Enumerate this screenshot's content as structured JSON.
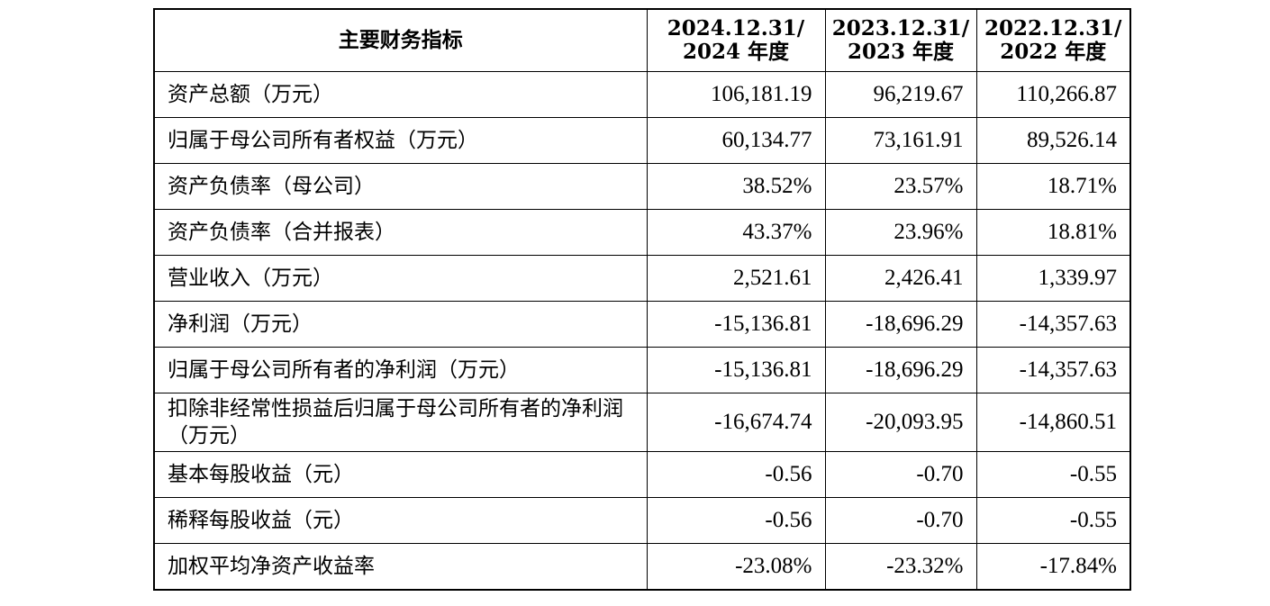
{
  "table": {
    "header": {
      "indicator": "主要财务指标",
      "periods": [
        {
          "line1": "2024.12.31/",
          "line2": "2024 年度"
        },
        {
          "line1": "2023.12.31/",
          "line2": "2023 年度"
        },
        {
          "line1": "2022.12.31/",
          "line2": "2022 年度"
        }
      ]
    },
    "rows": [
      {
        "label": "资产总额（万元）",
        "values": [
          "106,181.19",
          "96,219.67",
          "110,266.87"
        ]
      },
      {
        "label": "归属于母公司所有者权益（万元）",
        "values": [
          "60,134.77",
          "73,161.91",
          "89,526.14"
        ]
      },
      {
        "label": "资产负债率（母公司）",
        "values": [
          "38.52%",
          "23.57%",
          "18.71%"
        ]
      },
      {
        "label": "资产负债率（合并报表）",
        "values": [
          "43.37%",
          "23.96%",
          "18.81%"
        ]
      },
      {
        "label": "营业收入（万元）",
        "values": [
          "2,521.61",
          "2,426.41",
          "1,339.97"
        ]
      },
      {
        "label": "净利润（万元）",
        "values": [
          "-15,136.81",
          "-18,696.29",
          "-14,357.63"
        ]
      },
      {
        "label": "归属于母公司所有者的净利润（万元）",
        "values": [
          "-15,136.81",
          "-18,696.29",
          "-14,357.63"
        ]
      },
      {
        "label": "扣除非经常性损益后归属于母公司所有者的净利润（万元）",
        "values": [
          "-16,674.74",
          "-20,093.95",
          "-14,860.51"
        ]
      },
      {
        "label": "基本每股收益（元）",
        "values": [
          "-0.56",
          "-0.70",
          "-0.55"
        ]
      },
      {
        "label": "稀释每股收益（元）",
        "values": [
          "-0.56",
          "-0.70",
          "-0.55"
        ]
      },
      {
        "label": "加权平均净资产收益率",
        "values": [
          "-23.08%",
          "-23.32%",
          "-17.84%"
        ]
      }
    ]
  }
}
